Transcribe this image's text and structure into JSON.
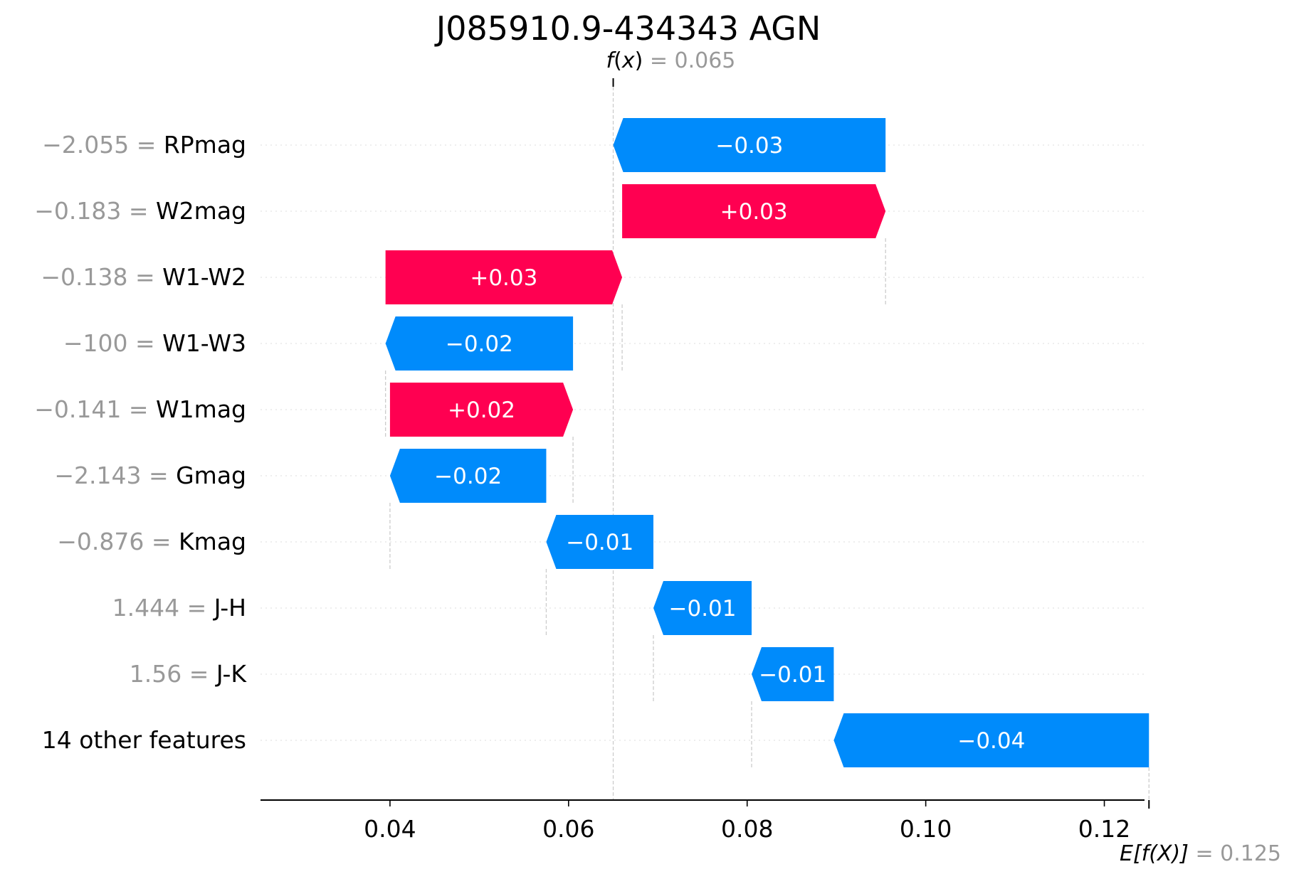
{
  "chart_data": {
    "type": "waterfall",
    "title": "J085910.9-434343 AGN",
    "fx": {
      "label_prefix": "f",
      "label_var": "x",
      "equals": "=",
      "value": "0.065",
      "value_num": 0.065
    },
    "expected": {
      "label": "E[f(X)]",
      "equals": "=",
      "value": "0.125",
      "value_num": 0.125
    },
    "xlim": [
      0.0255,
      0.1245
    ],
    "xticks": [
      {
        "value": 0.04,
        "label": "0.04"
      },
      {
        "value": 0.06,
        "label": "0.06"
      },
      {
        "value": 0.08,
        "label": "0.08"
      },
      {
        "value": 0.1,
        "label": "0.10"
      },
      {
        "value": 0.12,
        "label": "0.12"
      }
    ],
    "features": [
      {
        "value_text": "−2.055",
        "eq": "=",
        "name": "RPmag",
        "contribution_label": "−0.03",
        "start": 0.0955,
        "end": 0.065
      },
      {
        "value_text": "−0.183",
        "eq": "=",
        "name": "W2mag",
        "contribution_label": "+0.03",
        "start": 0.066,
        "end": 0.0955
      },
      {
        "value_text": "−0.138",
        "eq": "=",
        "name": "W1-W2",
        "contribution_label": "+0.03",
        "start": 0.0395,
        "end": 0.066
      },
      {
        "value_text": "−100",
        "eq": "=",
        "name": "W1-W3",
        "contribution_label": "−0.02",
        "start": 0.0605,
        "end": 0.0395
      },
      {
        "value_text": "−0.141",
        "eq": "=",
        "name": "W1mag",
        "contribution_label": "+0.02",
        "start": 0.04,
        "end": 0.0605
      },
      {
        "value_text": "−2.143",
        "eq": "=",
        "name": "Gmag",
        "contribution_label": "−0.02",
        "start": 0.0575,
        "end": 0.04
      },
      {
        "value_text": "−0.876",
        "eq": "=",
        "name": "Kmag",
        "contribution_label": "−0.01",
        "start": 0.0695,
        "end": 0.0575
      },
      {
        "value_text": "1.444",
        "eq": "=",
        "name": "J-H",
        "contribution_label": "−0.01",
        "start": 0.0805,
        "end": 0.0695
      },
      {
        "value_text": "1.56",
        "eq": "=",
        "name": "J-K",
        "contribution_label": "−0.01",
        "start": 0.0897,
        "end": 0.0805
      },
      {
        "value_text": "",
        "eq": "",
        "name": "14 other features",
        "contribution_label": "−0.04",
        "start": 0.125,
        "end": 0.0897
      }
    ],
    "colors": {
      "positive": "#ff0051",
      "negative": "#008bfb",
      "value_text": "#999999",
      "axis": "#000000",
      "gridline": "#cccccc"
    }
  }
}
